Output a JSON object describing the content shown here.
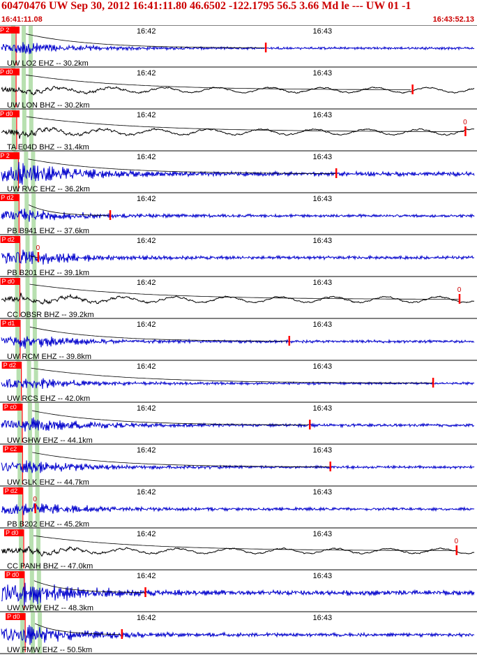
{
  "header": {
    "title": "60470476 UW Sep 30, 2012 16:41:11.80   46.6502 -122.1795 56.5 3.66 Md le --- UW 01  -1",
    "start_time": "16:41:11.08",
    "end_time": "16:43:52.13"
  },
  "colors": {
    "title": "#cc0000",
    "trace_short_period": "#0000cc",
    "trace_broadband": "#000000",
    "pick": "#ff0000",
    "window": "#b8e0b0",
    "coda": "#000000"
  },
  "chart_data": {
    "type": "line",
    "title": "60470476 UW Sep 30, 2012 16:41:11.80   46.6502 -122.1795 56.5 3.66 Md le --- UW 01  -1",
    "x_range": [
      "16:41:11.08",
      "16:43:52.13"
    ],
    "time_ticks": [
      "16:42",
      "16:43"
    ],
    "time_ticks_seconds": [
      48.92,
      108.92
    ],
    "duration_seconds": 161.05,
    "traces": [
      {
        "label": "UW LO2 EHZ -- 30.2km",
        "pick": "P 2",
        "p_sec": 5.0,
        "coda_sec": 90.0,
        "coda_mark": "",
        "color": "#0000cc",
        "amp": 0.9,
        "period": 0.6
      },
      {
        "label": "UW LON BHZ -- 30.2km",
        "pick": "P d0",
        "p_sec": 5.0,
        "coda_sec": 140.0,
        "coda_mark": "",
        "color": "#000000",
        "amp": 0.8,
        "period": 3.0
      },
      {
        "label": "TA E04D BHZ -- 31.4km",
        "pick": "P d0",
        "p_sec": 5.2,
        "coda_sec": 158.0,
        "coda_mark": "0",
        "color": "#000000",
        "amp": 0.9,
        "period": 2.6
      },
      {
        "label": "UW RVC EHZ -- 36.2km",
        "pick": "P 2",
        "p_sec": 5.8,
        "coda_sec": 114.0,
        "coda_mark": "",
        "color": "#0000cc",
        "amp": 1.6,
        "period": 0.5
      },
      {
        "label": "PB B941 EHZ -- 37.6km",
        "pick": "P d2",
        "p_sec": 6.0,
        "coda_sec": 37.0,
        "coda_mark": "",
        "color": "#0000cc",
        "amp": 1.0,
        "period": 0.5
      },
      {
        "label": "PB B201 EHZ -- 39.1km",
        "pick": "P d2",
        "p_sec": 6.3,
        "coda_sec": 12.5,
        "coda_mark": "0",
        "color": "#0000cc",
        "amp": 1.2,
        "period": 0.55
      },
      {
        "label": "CC OBSR BHZ -- 39.2km",
        "pick": "P d0",
        "p_sec": 6.3,
        "coda_sec": 156.0,
        "coda_mark": "0",
        "color": "#000000",
        "amp": 0.9,
        "period": 2.8
      },
      {
        "label": "UW RCM EHZ -- 39.8km",
        "pick": "P d1",
        "p_sec": 6.4,
        "coda_sec": 98.0,
        "coda_mark": "",
        "color": "#0000cc",
        "amp": 1.0,
        "period": 0.55
      },
      {
        "label": "UW RCS EHZ -- 42.0km",
        "pick": "P d2",
        "p_sec": 6.8,
        "coda_sec": 147.0,
        "coda_mark": "",
        "color": "#0000cc",
        "amp": 0.9,
        "period": 0.55
      },
      {
        "label": "UW GHW EHZ -- 44.1km",
        "pick": "P c0",
        "p_sec": 7.1,
        "coda_sec": 105.0,
        "coda_mark": "",
        "color": "#0000cc",
        "amp": 1.1,
        "period": 0.5
      },
      {
        "label": "UW GLK EHZ -- 44.7km",
        "pick": "P c2",
        "p_sec": 7.2,
        "coda_sec": 112.0,
        "coda_mark": "",
        "color": "#0000cc",
        "amp": 1.0,
        "period": 0.55
      },
      {
        "label": "PB B202 EHZ -- 45.2km",
        "pick": "P d2",
        "p_sec": 7.3,
        "coda_sec": 11.5,
        "coda_mark": "0",
        "color": "#0000cc",
        "amp": 1.1,
        "period": 0.5
      },
      {
        "label": "CC PANH BHZ -- 47.0km",
        "pick": "P d0",
        "p_sec": 7.6,
        "coda_sec": 155.0,
        "coda_mark": "0",
        "color": "#000000",
        "amp": 0.8,
        "period": 2.8
      },
      {
        "label": "UW WPW EHZ -- 48.3km",
        "pick": "P d0",
        "p_sec": 7.8,
        "coda_sec": 49.0,
        "coda_mark": "",
        "color": "#0000cc",
        "amp": 1.8,
        "period": 0.5
      },
      {
        "label": "UW FMW EHZ -- 50.5km",
        "pick": "P d0",
        "p_sec": 8.1,
        "coda_sec": 41.0,
        "coda_mark": "",
        "color": "#0000cc",
        "amp": 1.3,
        "period": 0.5
      }
    ]
  }
}
